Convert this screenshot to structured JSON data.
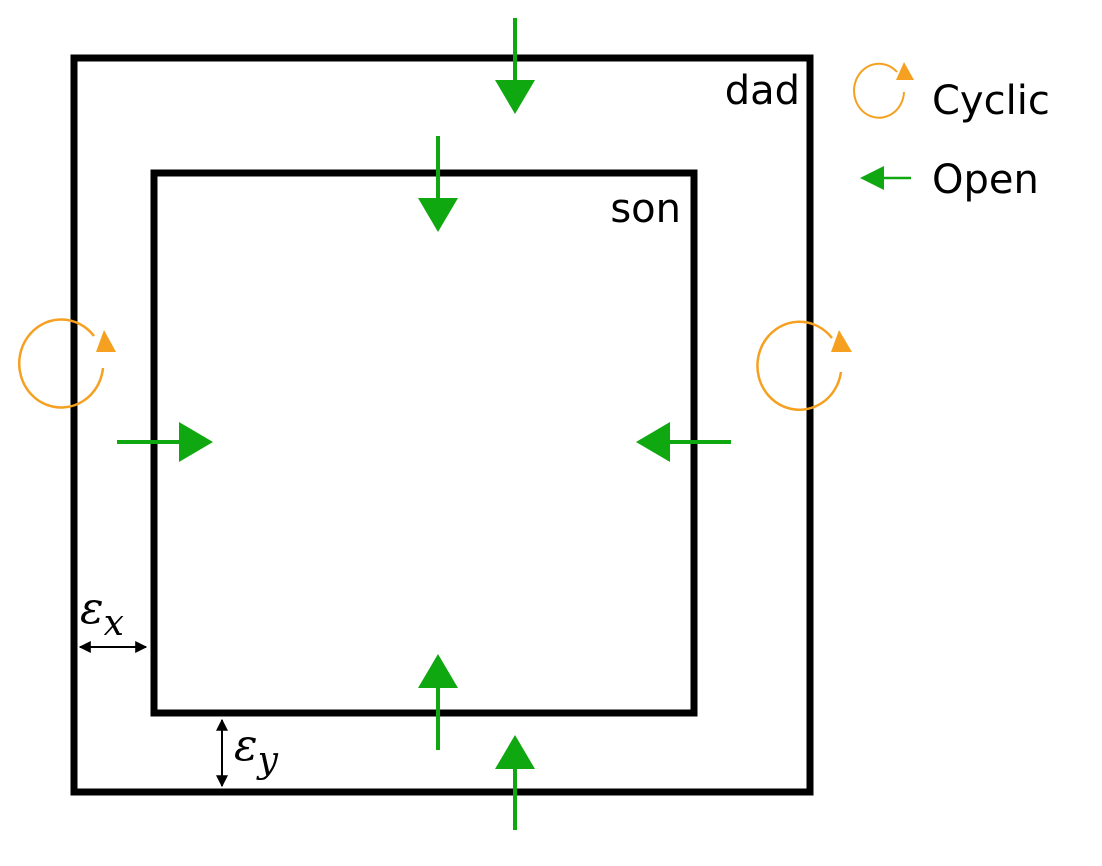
{
  "labels": {
    "outer": "dad",
    "inner": "son",
    "epsilon_x": "ε",
    "epsilon_x_sub": "x",
    "epsilon_y": "ε",
    "epsilon_y_sub": "y"
  },
  "legend": {
    "cyclic": "Cyclic",
    "open": "Open"
  },
  "colors": {
    "cyclic": "#f5a020",
    "open": "#10a810",
    "border": "#000000"
  },
  "icons": {
    "cyclic": "circular-arrow-icon",
    "open": "left-arrow-icon"
  }
}
